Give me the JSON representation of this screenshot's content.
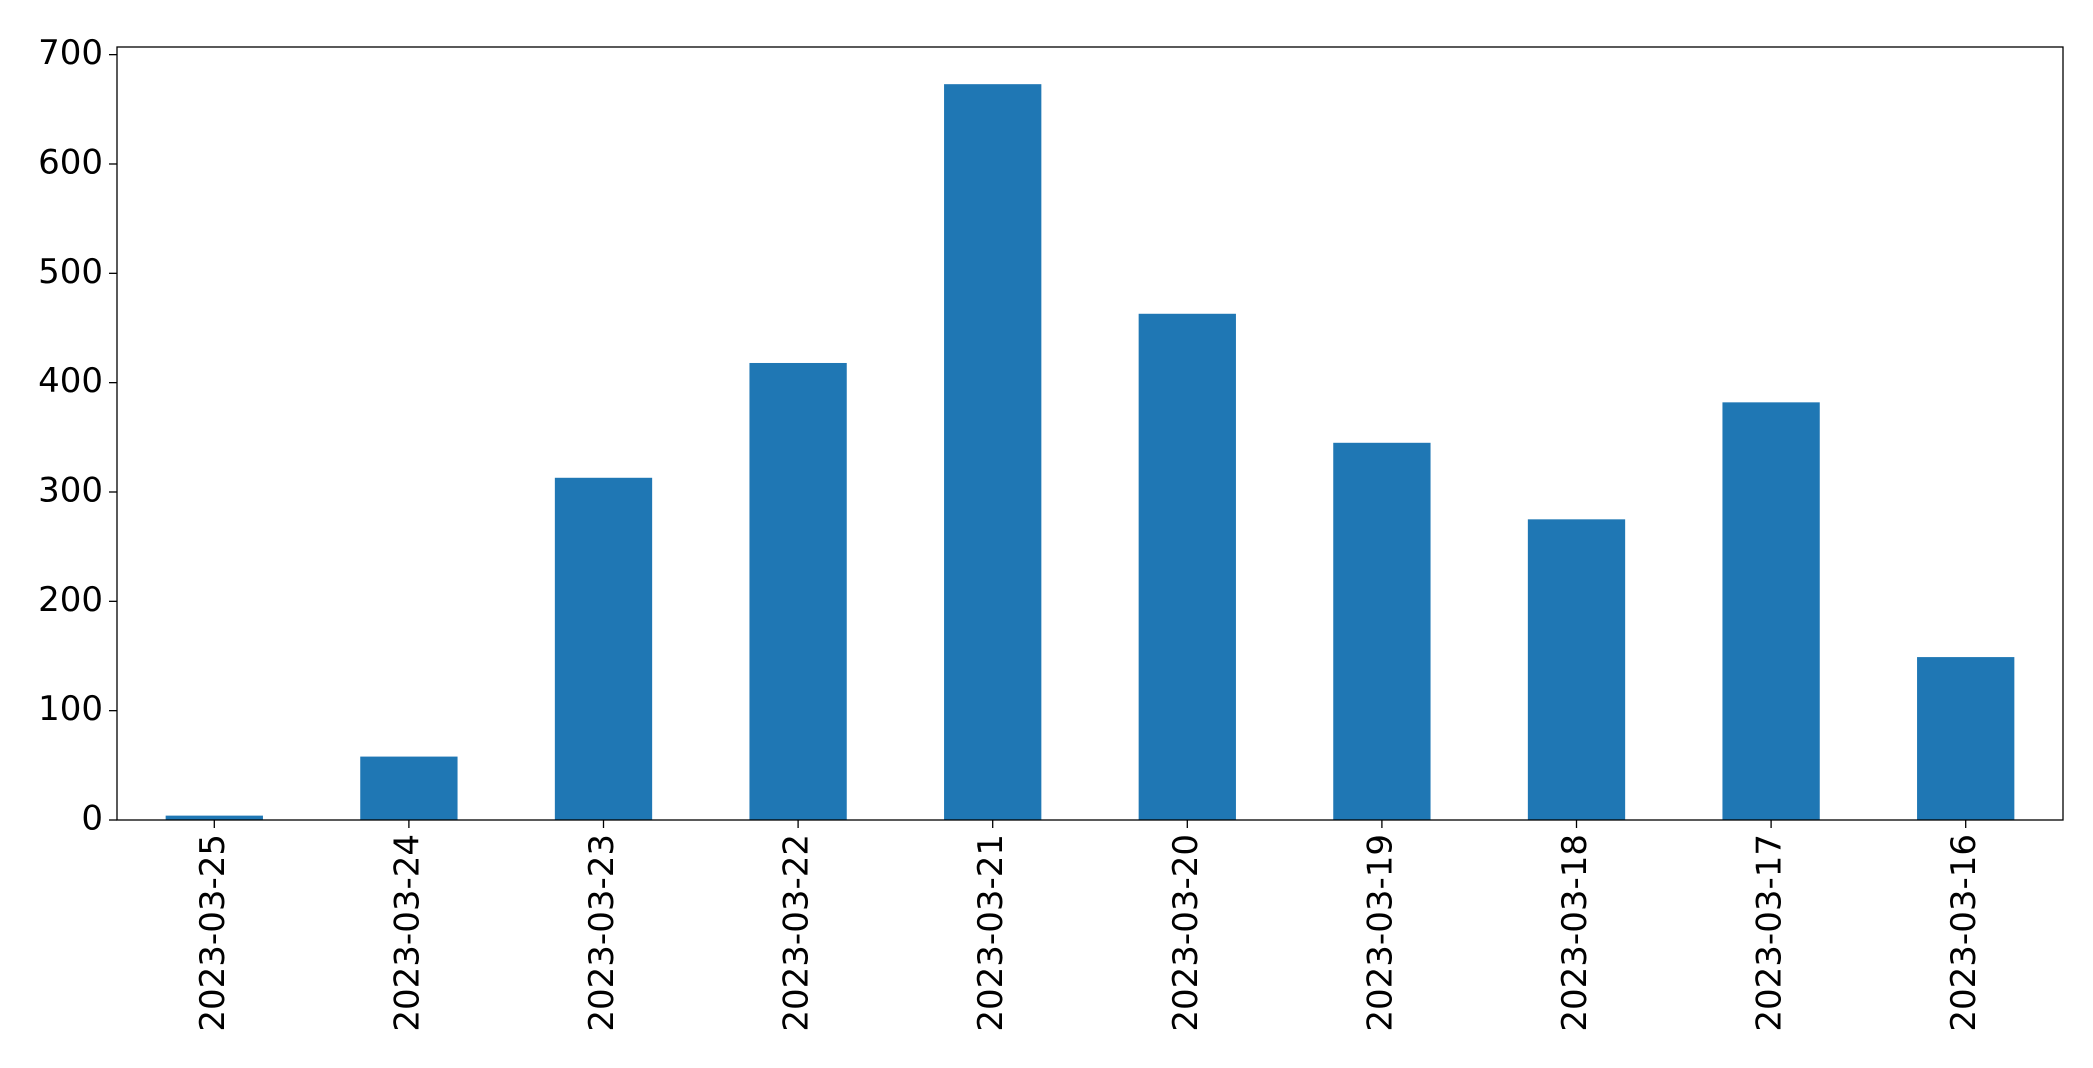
{
  "chart_data": {
    "type": "bar",
    "categories": [
      "2023-03-25",
      "2023-03-24",
      "2023-03-23",
      "2023-03-22",
      "2023-03-21",
      "2023-03-20",
      "2023-03-19",
      "2023-03-18",
      "2023-03-17",
      "2023-03-16"
    ],
    "values": [
      4,
      58,
      313,
      418,
      673,
      463,
      345,
      275,
      382,
      149
    ],
    "color": "#1f77b4",
    "ylim": [
      0,
      707
    ],
    "yticks": [
      0,
      100,
      200,
      300,
      400,
      500,
      600,
      700
    ],
    "grid": false
  }
}
